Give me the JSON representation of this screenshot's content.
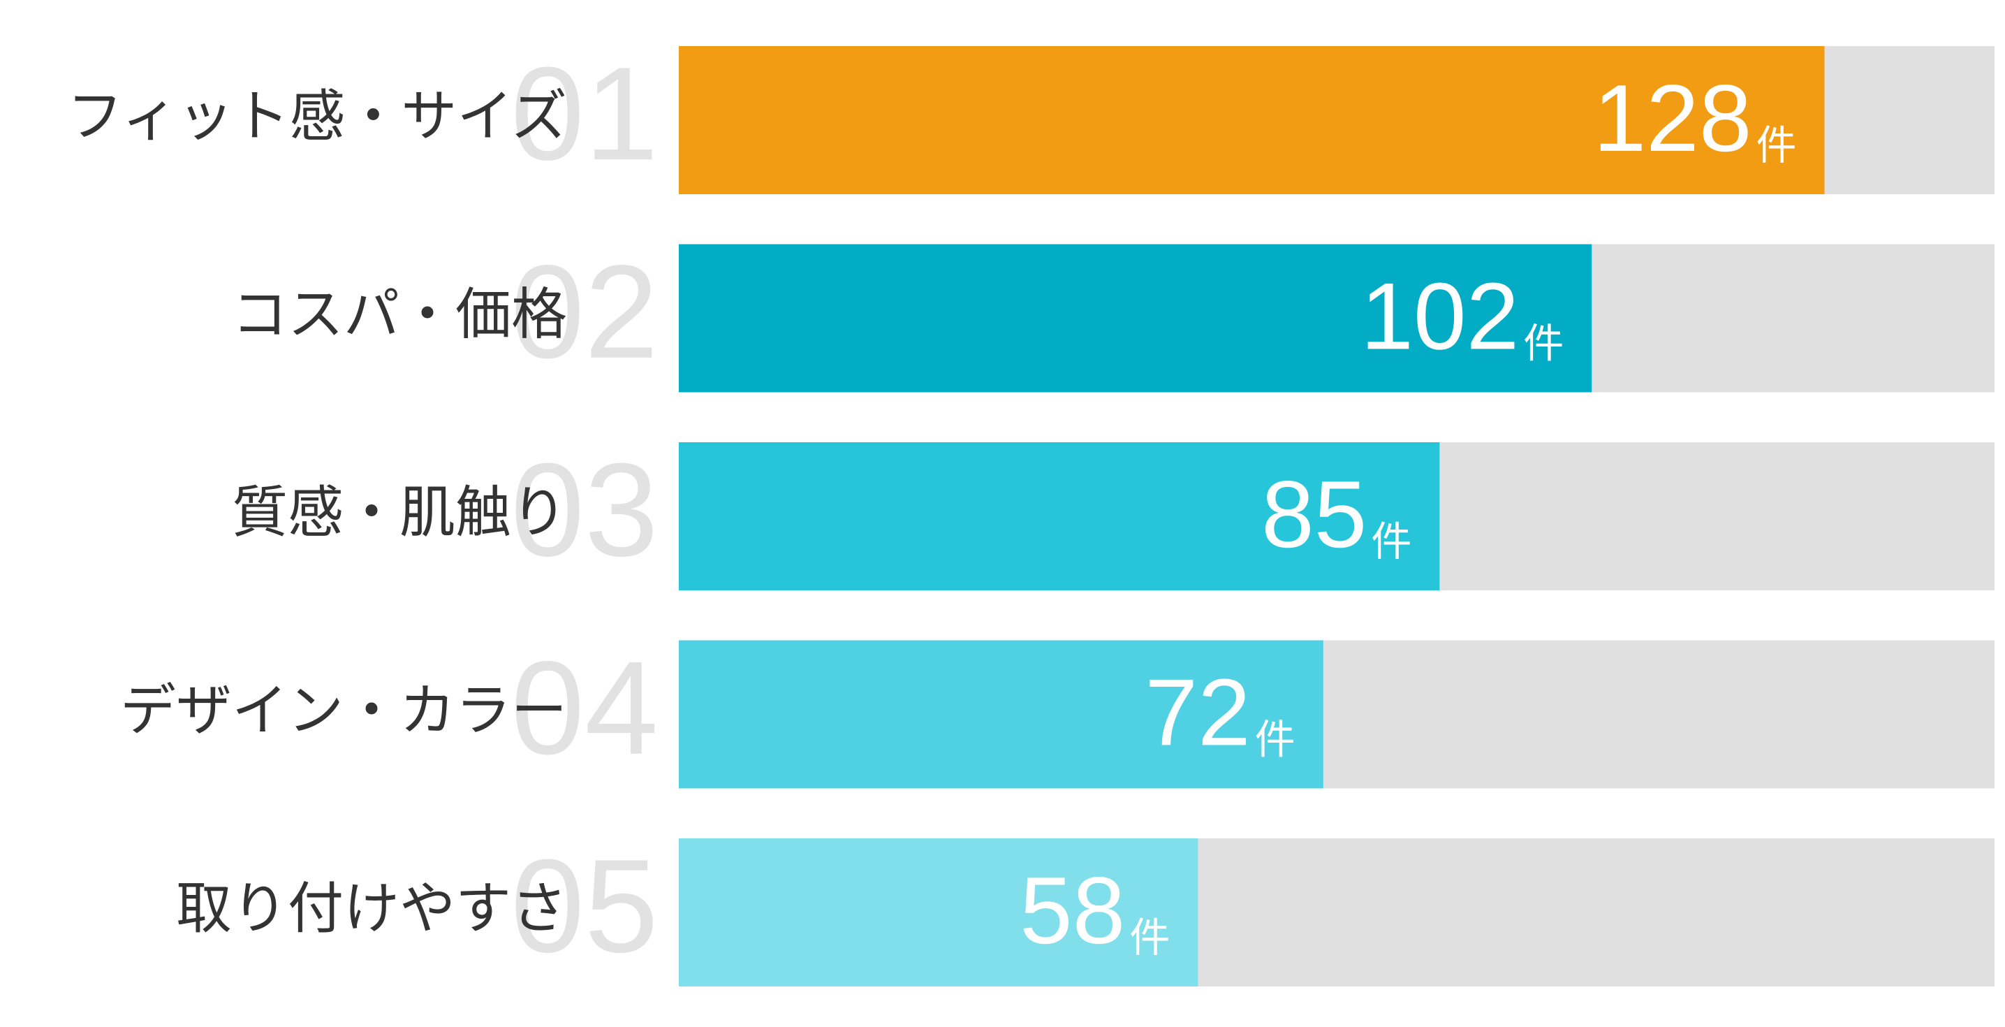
{
  "chart_data": {
    "type": "bar",
    "orientation": "horizontal",
    "categories": [
      "フィット感・サイズ",
      "コスパ・価格",
      "質感・肌触り",
      "デザイン・カラー",
      "取り付けやすさ"
    ],
    "ranks": [
      "01",
      "02",
      "03",
      "04",
      "05"
    ],
    "values": [
      128,
      102,
      85,
      72,
      58
    ],
    "unit": "件",
    "colors": [
      "#f29c14",
      "#02acc4",
      "#26c5da",
      "#4fd1e3",
      "#80dfea"
    ],
    "track_color": "#e0e0e0",
    "xlim": [
      0,
      147
    ]
  }
}
